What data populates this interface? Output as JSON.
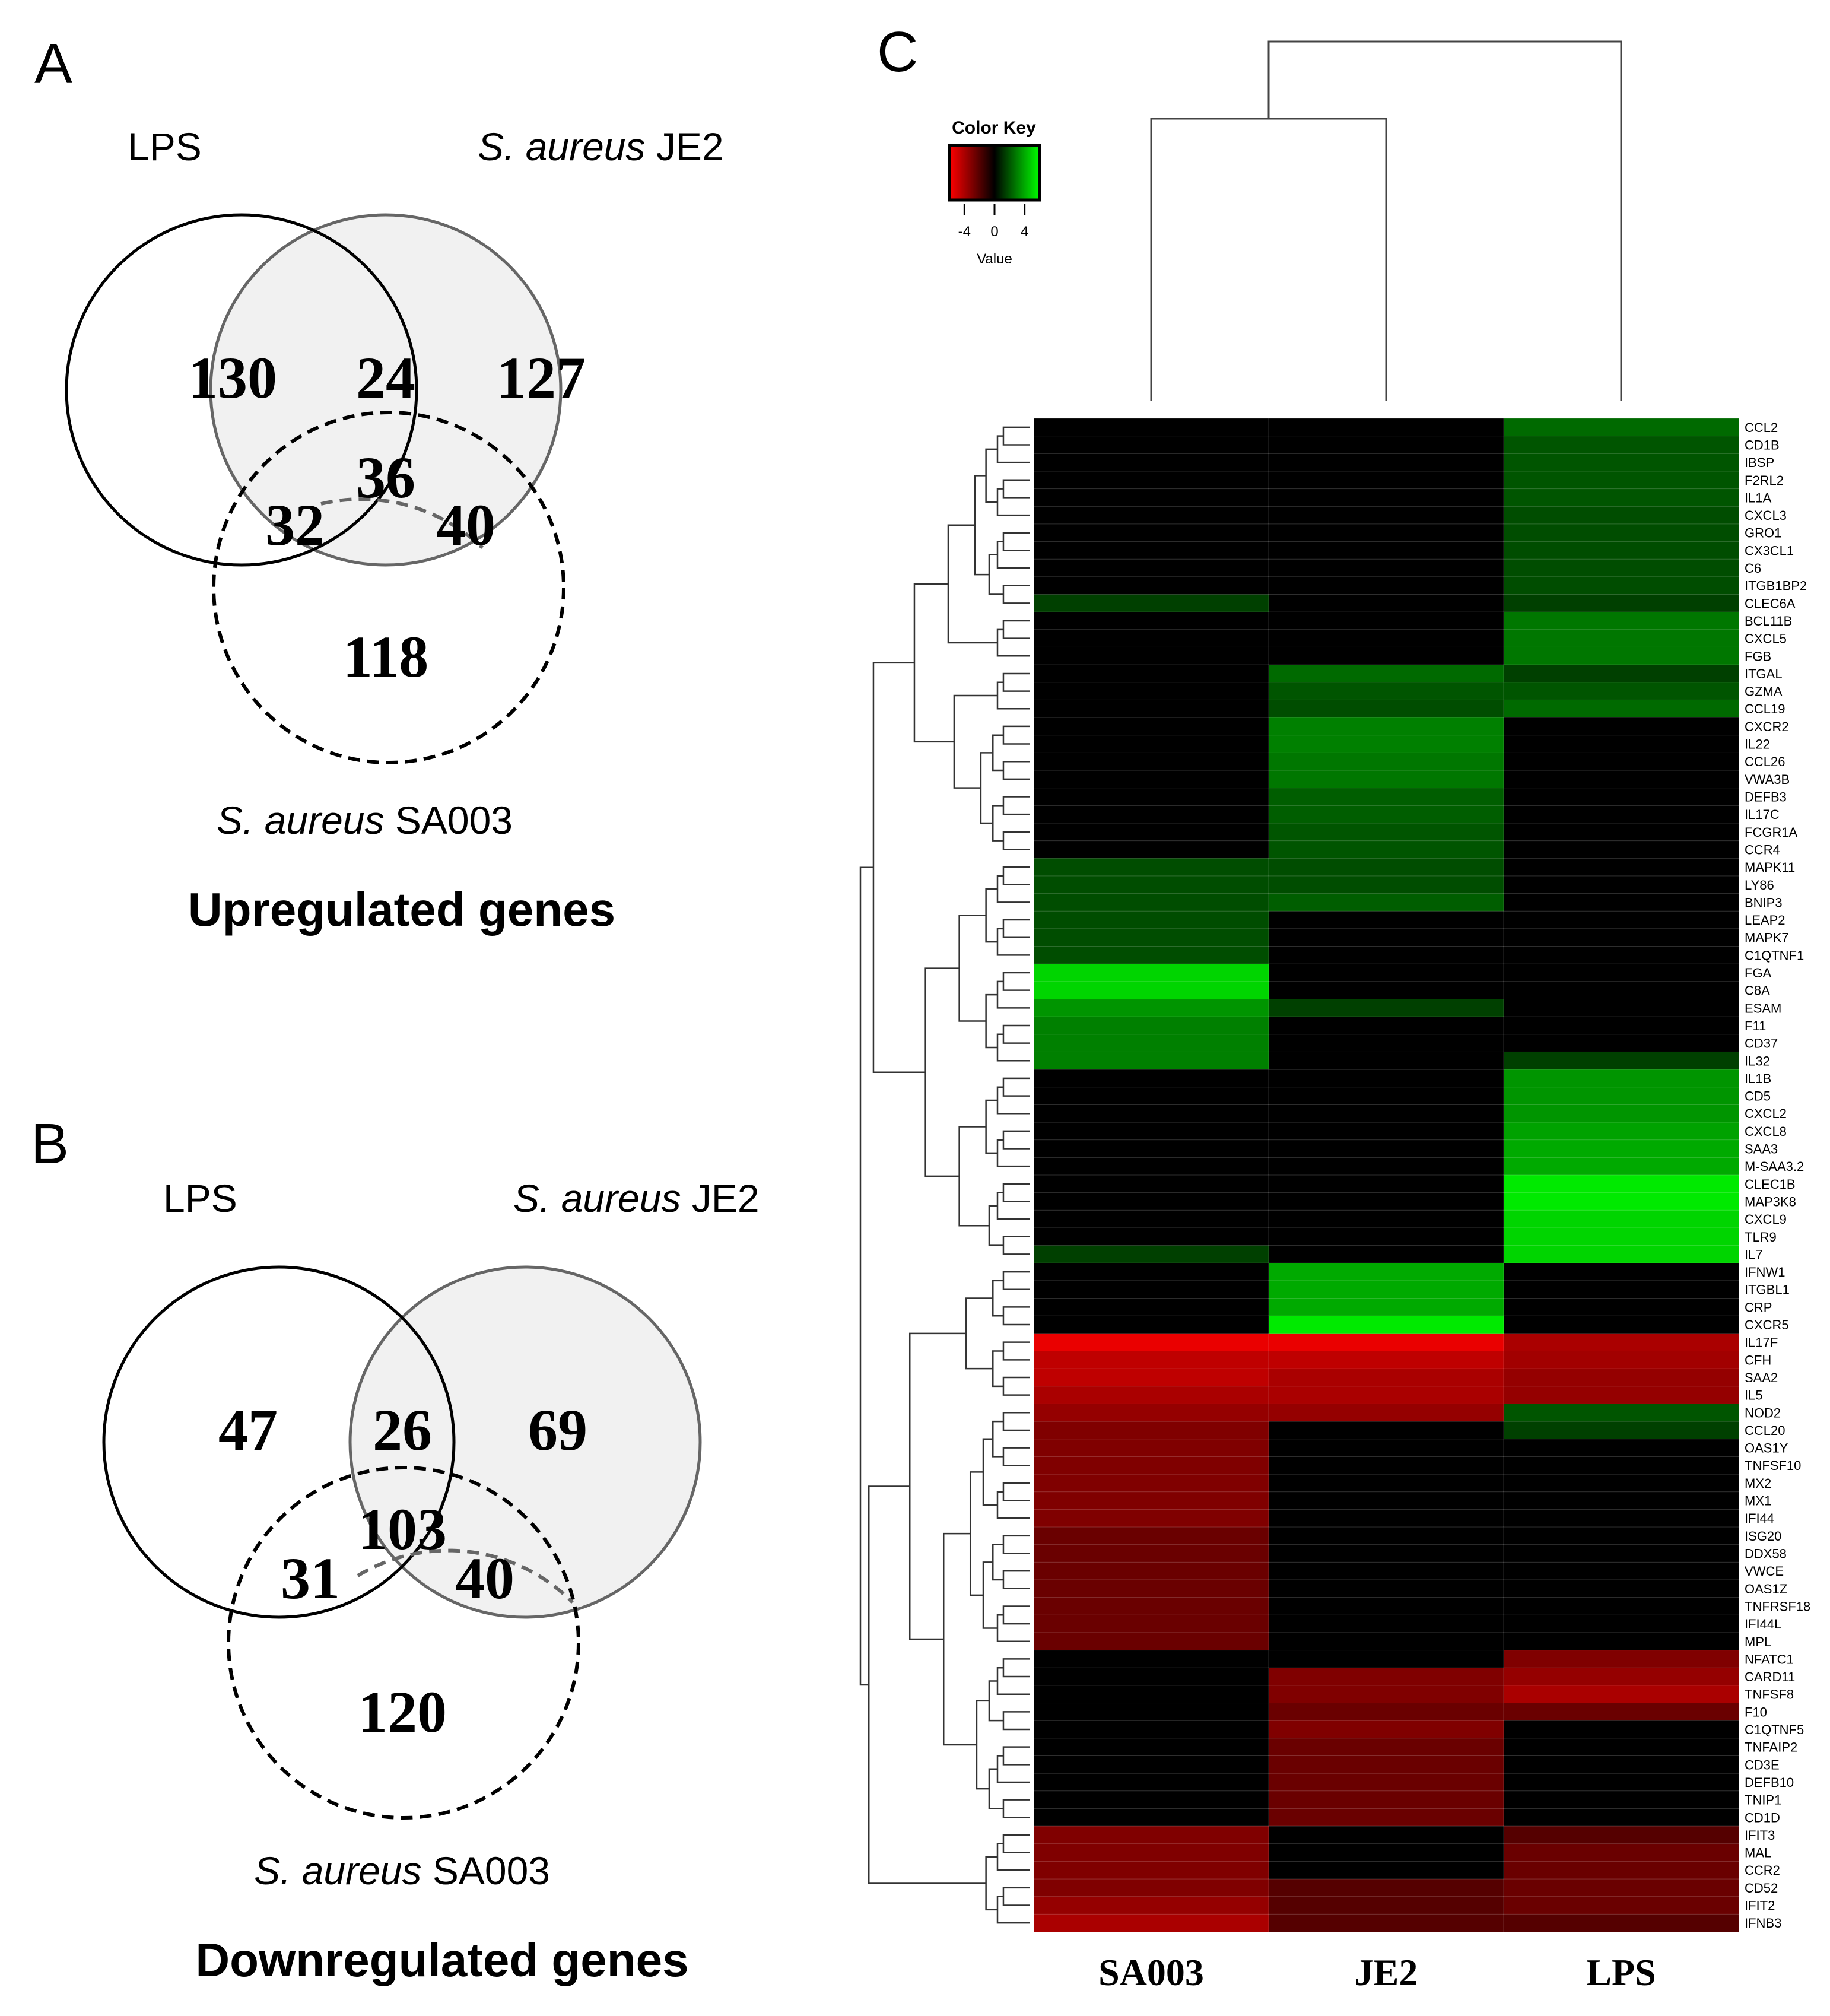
{
  "panel_a": {
    "letter": "A",
    "set_labels": {
      "lps": "LPS",
      "je2_italic": "S. aureus",
      "je2_strain": " JE2",
      "sa003_italic": "S. aureus",
      "sa003_strain": " SA003"
    },
    "counts": {
      "lps_only": "130",
      "lps_je2": "24",
      "je2_only": "127",
      "all_three": "36",
      "lps_sa003": "32",
      "je2_sa003": "40",
      "sa003_only": "118"
    },
    "caption": "Upregulated genes"
  },
  "panel_b": {
    "letter": "B",
    "set_labels": {
      "lps": "LPS",
      "je2_italic": "S. aureus",
      "je2_strain": " JE2",
      "sa003_italic": "S. aureus",
      "sa003_strain": " SA003"
    },
    "counts": {
      "lps_only": "47",
      "lps_je2": "26",
      "je2_only": "69",
      "all_three": "103",
      "lps_sa003": "31",
      "je2_sa003": "40",
      "sa003_only": "120"
    },
    "caption": "Downregulated genes"
  },
  "panel_c": {
    "letter": "C",
    "color_key": {
      "title": "Color Key",
      "ticks": [
        "-4",
        "0",
        "4"
      ],
      "label": "Value",
      "low_color": "#ff0000",
      "mid_color": "#000000",
      "high_color": "#00ff00",
      "range": [
        -6,
        6
      ]
    }
  },
  "chart_data": {
    "type": "heatmap",
    "title": "",
    "columns": [
      "SA003",
      "JE2",
      "LPS"
    ],
    "value_range": [
      -6,
      6
    ],
    "rows": [
      {
        "gene": "CCL2",
        "values": [
          0,
          0,
          2.5
        ]
      },
      {
        "gene": "CD1B",
        "values": [
          0,
          0,
          2
        ]
      },
      {
        "gene": "IBSP",
        "values": [
          0,
          0,
          2
        ]
      },
      {
        "gene": "F2RL2",
        "values": [
          0,
          0,
          2
        ]
      },
      {
        "gene": "IL1A",
        "values": [
          0,
          0,
          2
        ]
      },
      {
        "gene": "CXCL3",
        "values": [
          0,
          0,
          1.8
        ]
      },
      {
        "gene": "GRO1",
        "values": [
          0,
          0,
          1.8
        ]
      },
      {
        "gene": "CX3CL1",
        "values": [
          0,
          0,
          1.8
        ]
      },
      {
        "gene": "C6",
        "values": [
          0,
          0,
          1.8
        ]
      },
      {
        "gene": "ITGB1BP2",
        "values": [
          0,
          0,
          1.8
        ]
      },
      {
        "gene": "CLEC6A",
        "values": [
          1.5,
          0,
          1.5
        ]
      },
      {
        "gene": "BCL11B",
        "values": [
          0,
          0,
          2.8
        ]
      },
      {
        "gene": "CXCL5",
        "values": [
          0,
          0,
          2.8
        ]
      },
      {
        "gene": "FGB",
        "values": [
          0,
          0,
          2.8
        ]
      },
      {
        "gene": "ITGAL",
        "values": [
          0,
          2.5,
          1.5
        ]
      },
      {
        "gene": "GZMA",
        "values": [
          0,
          2,
          2
        ]
      },
      {
        "gene": "CCL19",
        "values": [
          0,
          1.8,
          2.5
        ]
      },
      {
        "gene": "CXCR2",
        "values": [
          0,
          3,
          0
        ]
      },
      {
        "gene": "IL22",
        "values": [
          0,
          3,
          0
        ]
      },
      {
        "gene": "CCL26",
        "values": [
          0,
          2.8,
          0
        ]
      },
      {
        "gene": "VWA3B",
        "values": [
          0,
          2.8,
          0
        ]
      },
      {
        "gene": "DEFB3",
        "values": [
          0,
          2.2,
          0
        ]
      },
      {
        "gene": "IL17C",
        "values": [
          0,
          2.2,
          0
        ]
      },
      {
        "gene": "FCGR1A",
        "values": [
          0,
          2,
          0
        ]
      },
      {
        "gene": "CCR4",
        "values": [
          0,
          2,
          0
        ]
      },
      {
        "gene": "MAPK11",
        "values": [
          1.8,
          1.8,
          0
        ]
      },
      {
        "gene": "LY86",
        "values": [
          1.8,
          1.8,
          0
        ]
      },
      {
        "gene": "BNIP3",
        "values": [
          1.8,
          2.2,
          0
        ]
      },
      {
        "gene": "LEAP2",
        "values": [
          1.8,
          0,
          0
        ]
      },
      {
        "gene": "MAPK7",
        "values": [
          1.8,
          0,
          0
        ]
      },
      {
        "gene": "C1QTNF1",
        "values": [
          1.8,
          0,
          0
        ]
      },
      {
        "gene": "FGA",
        "values": [
          5,
          0,
          0
        ]
      },
      {
        "gene": "C8A",
        "values": [
          5,
          0,
          0
        ]
      },
      {
        "gene": "ESAM",
        "values": [
          3.5,
          1.5,
          0
        ]
      },
      {
        "gene": "F11",
        "values": [
          3,
          0,
          0
        ]
      },
      {
        "gene": "CD37",
        "values": [
          3,
          0,
          0
        ]
      },
      {
        "gene": "IL32",
        "values": [
          3,
          0,
          1.5
        ]
      },
      {
        "gene": "IL1B",
        "values": [
          0,
          0,
          3.5
        ]
      },
      {
        "gene": "CD5",
        "values": [
          0,
          0,
          3.5
        ]
      },
      {
        "gene": "CXCL2",
        "values": [
          0,
          0,
          3.5
        ]
      },
      {
        "gene": "CXCL8",
        "values": [
          0,
          0,
          3.8
        ]
      },
      {
        "gene": "SAA3",
        "values": [
          0,
          0,
          4
        ]
      },
      {
        "gene": "M-SAA3.2",
        "values": [
          0,
          0,
          4
        ]
      },
      {
        "gene": "CLEC1B",
        "values": [
          0,
          0,
          5.5
        ]
      },
      {
        "gene": "MAP3K8",
        "values": [
          0,
          0,
          5.5
        ]
      },
      {
        "gene": "CXCL9",
        "values": [
          0,
          0,
          5
        ]
      },
      {
        "gene": "TLR9",
        "values": [
          0,
          0,
          5
        ]
      },
      {
        "gene": "IL7",
        "values": [
          1.5,
          0,
          5
        ]
      },
      {
        "gene": "IFNW1",
        "values": [
          0,
          4,
          0
        ]
      },
      {
        "gene": "ITGBL1",
        "values": [
          0,
          4,
          0
        ]
      },
      {
        "gene": "CRP",
        "values": [
          0,
          4,
          0
        ]
      },
      {
        "gene": "CXCR5",
        "values": [
          0,
          5.5,
          0
        ]
      },
      {
        "gene": "IL17F",
        "values": [
          -5.5,
          -5.5,
          -4
        ]
      },
      {
        "gene": "CFH",
        "values": [
          -4.5,
          -4.5,
          -3.8
        ]
      },
      {
        "gene": "SAA2",
        "values": [
          -4.5,
          -4,
          -3.5
        ]
      },
      {
        "gene": "IL5",
        "values": [
          -4,
          -4,
          -3.5
        ]
      },
      {
        "gene": "NOD2",
        "values": [
          -3.5,
          -3.5,
          2
        ]
      },
      {
        "gene": "CCL20",
        "values": [
          -3,
          0,
          1.5
        ]
      },
      {
        "gene": "OAS1Y",
        "values": [
          -3,
          0,
          0
        ]
      },
      {
        "gene": "TNFSF10",
        "values": [
          -3,
          0,
          0
        ]
      },
      {
        "gene": "MX2",
        "values": [
          -3,
          0,
          0
        ]
      },
      {
        "gene": "MX1",
        "values": [
          -3,
          0,
          0
        ]
      },
      {
        "gene": "IFI44",
        "values": [
          -3,
          0,
          0
        ]
      },
      {
        "gene": "ISG20",
        "values": [
          -2.5,
          0,
          0
        ]
      },
      {
        "gene": "DDX58",
        "values": [
          -2.5,
          0,
          0
        ]
      },
      {
        "gene": "VWCE",
        "values": [
          -2.5,
          0,
          0
        ]
      },
      {
        "gene": "OAS1Z",
        "values": [
          -2.5,
          0,
          0
        ]
      },
      {
        "gene": "TNFRSF18",
        "values": [
          -2.5,
          0,
          0
        ]
      },
      {
        "gene": "IFI44L",
        "values": [
          -2.5,
          0,
          0
        ]
      },
      {
        "gene": "MPL",
        "values": [
          -2.5,
          0,
          0
        ]
      },
      {
        "gene": "NFATC1",
        "values": [
          0,
          0,
          -3
        ]
      },
      {
        "gene": "CARD11",
        "values": [
          0,
          -3,
          -3.5
        ]
      },
      {
        "gene": "TNFSF8",
        "values": [
          0,
          -3,
          -4
        ]
      },
      {
        "gene": "F10",
        "values": [
          0,
          -2.5,
          -2.5
        ]
      },
      {
        "gene": "C1QTNF5",
        "values": [
          0,
          -3,
          0
        ]
      },
      {
        "gene": "TNFAIP2",
        "values": [
          0,
          -2.5,
          0
        ]
      },
      {
        "gene": "CD3E",
        "values": [
          0,
          -2.5,
          0
        ]
      },
      {
        "gene": "DEFB10",
        "values": [
          0,
          -2.5,
          0
        ]
      },
      {
        "gene": "TNIP1",
        "values": [
          0,
          -2.5,
          0
        ]
      },
      {
        "gene": "CD1D",
        "values": [
          0,
          -2.5,
          0
        ]
      },
      {
        "gene": "IFIT3",
        "values": [
          -3,
          0,
          -2
        ]
      },
      {
        "gene": "MAL",
        "values": [
          -3,
          0,
          -2.5
        ]
      },
      {
        "gene": "CCR2",
        "values": [
          -3,
          0,
          -2.5
        ]
      },
      {
        "gene": "CD52",
        "values": [
          -3,
          -2,
          -2.5
        ]
      },
      {
        "gene": "IFIT2",
        "values": [
          -3.5,
          -2,
          -2.5
        ]
      },
      {
        "gene": "IFNB3",
        "values": [
          -4,
          -2,
          -2
        ]
      }
    ]
  }
}
